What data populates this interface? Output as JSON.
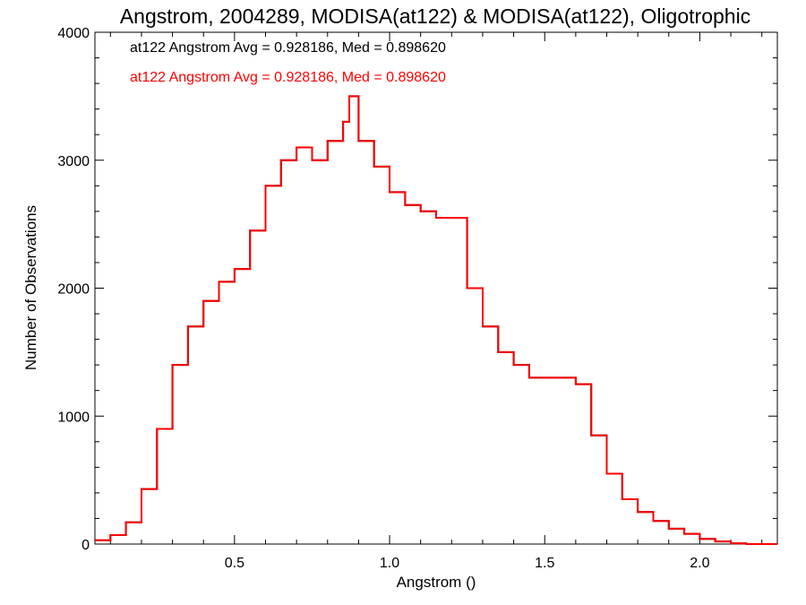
{
  "chart_data": {
    "type": "line",
    "title": "Angstrom, 2004289, MODISA(at122) & MODISA(at122), Oligotrophic",
    "xlabel": "Angstrom ()",
    "ylabel": "Number of Observations",
    "xlim": [
      0.05,
      2.25
    ],
    "ylim": [
      0,
      4000
    ],
    "xticks": [
      0.5,
      1.0,
      1.5,
      2.0
    ],
    "xtick_labels": [
      "0.5",
      "1.0",
      "1.5",
      "2.0"
    ],
    "yticks": [
      0,
      1000,
      2000,
      3000,
      4000
    ],
    "ytick_labels": [
      "0",
      "1000",
      "2000",
      "3000",
      "4000"
    ],
    "grid": false,
    "series": [
      {
        "color": "#000000",
        "x": [
          0.05,
          0.1,
          0.15,
          0.2,
          0.25,
          0.3,
          0.35,
          0.4,
          0.45,
          0.5,
          0.55,
          0.6,
          0.65,
          0.7,
          0.75,
          0.8,
          0.85,
          0.87,
          0.9,
          0.95,
          1.0,
          1.05,
          1.1,
          1.15,
          1.2,
          1.25,
          1.3,
          1.35,
          1.4,
          1.45,
          1.5,
          1.55,
          1.6,
          1.65,
          1.7,
          1.75,
          1.8,
          1.85,
          1.9,
          1.95,
          2.0,
          2.05,
          2.1,
          2.15,
          2.2,
          2.25
        ],
        "y": [
          30,
          70,
          170,
          430,
          900,
          1400,
          1700,
          1900,
          2050,
          2150,
          2450,
          2800,
          3000,
          3100,
          3000,
          3150,
          3300,
          3500,
          3150,
          2950,
          2750,
          2650,
          2600,
          2550,
          2550,
          2000,
          1700,
          1500,
          1400,
          1300,
          1300,
          1300,
          1250,
          850,
          550,
          350,
          250,
          180,
          120,
          80,
          40,
          20,
          5,
          0,
          0,
          0
        ]
      },
      {
        "color": "#ff0000",
        "x": [
          0.05,
          0.1,
          0.15,
          0.2,
          0.25,
          0.3,
          0.35,
          0.4,
          0.45,
          0.5,
          0.55,
          0.6,
          0.65,
          0.7,
          0.75,
          0.8,
          0.85,
          0.87,
          0.9,
          0.95,
          1.0,
          1.05,
          1.1,
          1.15,
          1.2,
          1.25,
          1.3,
          1.35,
          1.4,
          1.45,
          1.5,
          1.55,
          1.6,
          1.65,
          1.7,
          1.75,
          1.8,
          1.85,
          1.9,
          1.95,
          2.0,
          2.05,
          2.1,
          2.15,
          2.2,
          2.25
        ],
        "y": [
          30,
          70,
          170,
          430,
          900,
          1400,
          1700,
          1900,
          2050,
          2150,
          2450,
          2800,
          3000,
          3100,
          3000,
          3150,
          3300,
          3500,
          3150,
          2950,
          2750,
          2650,
          2600,
          2550,
          2550,
          2000,
          1700,
          1500,
          1400,
          1300,
          1300,
          1300,
          1250,
          850,
          550,
          350,
          250,
          180,
          120,
          80,
          40,
          20,
          5,
          0,
          0,
          0
        ]
      }
    ],
    "annotations": [
      {
        "text": "at122 Angstrom Avg = 0.928186, Med = 0.898620",
        "color": "#000000"
      },
      {
        "text": "at122 Angstrom Avg = 0.928186, Med = 0.898620",
        "color": "#ff0000"
      }
    ]
  }
}
